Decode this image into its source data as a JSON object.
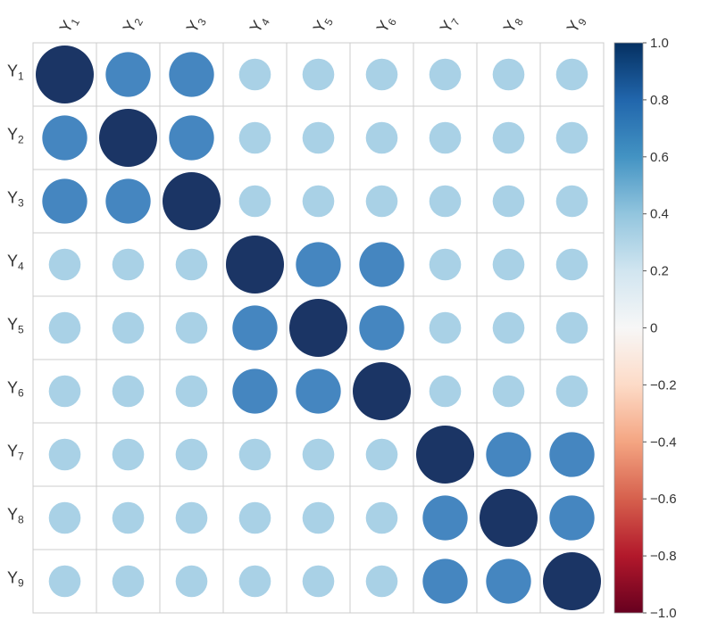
{
  "chart_data": {
    "type": "heatmap",
    "variables": [
      {
        "base": "Y",
        "sub": "1"
      },
      {
        "base": "Y",
        "sub": "2"
      },
      {
        "base": "Y",
        "sub": "3"
      },
      {
        "base": "Y",
        "sub": "4"
      },
      {
        "base": "Y",
        "sub": "5"
      },
      {
        "base": "Y",
        "sub": "6"
      },
      {
        "base": "Y",
        "sub": "7"
      },
      {
        "base": "Y",
        "sub": "8"
      },
      {
        "base": "Y",
        "sub": "9"
      }
    ],
    "matrix": [
      [
        1.0,
        0.6,
        0.6,
        0.3,
        0.3,
        0.3,
        0.3,
        0.3,
        0.3
      ],
      [
        0.6,
        1.0,
        0.6,
        0.3,
        0.3,
        0.3,
        0.3,
        0.3,
        0.3
      ],
      [
        0.6,
        0.6,
        1.0,
        0.3,
        0.3,
        0.3,
        0.3,
        0.3,
        0.3
      ],
      [
        0.3,
        0.3,
        0.3,
        1.0,
        0.6,
        0.6,
        0.3,
        0.3,
        0.3
      ],
      [
        0.3,
        0.3,
        0.3,
        0.6,
        1.0,
        0.6,
        0.3,
        0.3,
        0.3
      ],
      [
        0.3,
        0.3,
        0.3,
        0.6,
        0.6,
        1.0,
        0.3,
        0.3,
        0.3
      ],
      [
        0.3,
        0.3,
        0.3,
        0.3,
        0.3,
        0.3,
        1.0,
        0.6,
        0.6
      ],
      [
        0.3,
        0.3,
        0.3,
        0.3,
        0.3,
        0.3,
        0.6,
        1.0,
        0.6
      ],
      [
        0.3,
        0.3,
        0.3,
        0.3,
        0.3,
        0.3,
        0.6,
        0.6,
        1.0
      ]
    ],
    "color_range": [
      -1.0,
      1.0
    ],
    "colorbar_ticks": [
      "1.0",
      "0.8",
      "0.6",
      "0.4",
      "0.2",
      "0",
      "−0.2",
      "−0.4",
      "−0.6",
      "−0.8",
      "−1.0"
    ],
    "colorbar_tick_values": [
      1.0,
      0.8,
      0.6,
      0.4,
      0.2,
      0.0,
      -0.2,
      -0.4,
      -0.6,
      -0.8,
      -1.0
    ],
    "colorscale": [
      "#67001f",
      "#b2182b",
      "#d6604d",
      "#f4a582",
      "#fddbc7",
      "#f7f7f7",
      "#d1e5f0",
      "#92c5de",
      "#4393c3",
      "#2166ac",
      "#053061"
    ],
    "colors": {
      "strong": "#1b3565",
      "medium": "#4586c0",
      "weak": "#a9d1e6"
    },
    "grid": true,
    "legend_position": "right"
  }
}
